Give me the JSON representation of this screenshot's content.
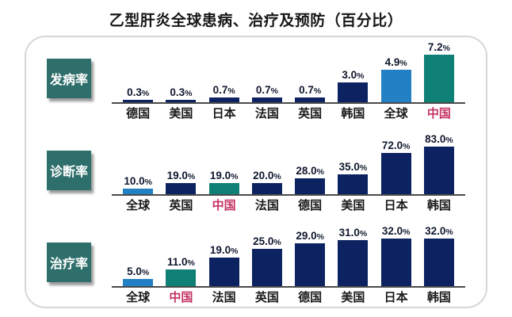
{
  "title": "乙型肝炎全球患病、治疗及预防（百分比）",
  "colors": {
    "bar_navy": "#0d2361",
    "bar_light_blue": "#2380c4",
    "bar_teal": "#0f8076",
    "row_label_box": "#2e6f6b",
    "china_label_red": "#c43364",
    "category_label_black": "#1a1a1a",
    "axis_line": "#4a4a4a",
    "card_border": "#d6d6d6"
  },
  "chart_data": [
    {
      "type": "bar",
      "row_label": "发病率",
      "unit": "%",
      "categories": [
        "德国",
        "美国",
        "日本",
        "法国",
        "英国",
        "韩国",
        "全球",
        "中国"
      ],
      "values": [
        0.3,
        0.3,
        0.7,
        0.7,
        0.7,
        3.0,
        4.9,
        7.2
      ],
      "labels": [
        "0.3",
        "0.3",
        "0.7",
        "0.7",
        "0.7",
        "3.0",
        "4.9",
        "7.2"
      ],
      "bar_colors": [
        "#0d2361",
        "#0d2361",
        "#0d2361",
        "#0d2361",
        "#0d2361",
        "#0d2361",
        "#2380c4",
        "#0f8076"
      ],
      "category_colors": [
        "#1a1a1a",
        "#1a1a1a",
        "#1a1a1a",
        "#1a1a1a",
        "#1a1a1a",
        "#1a1a1a",
        "#1a1a1a",
        "#c43364"
      ],
      "ylim": [
        0,
        7.2
      ],
      "grid": false,
      "legend": false
    },
    {
      "type": "bar",
      "row_label": "诊断率",
      "unit": "%",
      "categories": [
        "全球",
        "英国",
        "中国",
        "法国",
        "德国",
        "美国",
        "日本",
        "韩国"
      ],
      "values": [
        10.0,
        19.0,
        19.0,
        20.0,
        28.0,
        35.0,
        72.0,
        83.0
      ],
      "labels": [
        "10.0",
        "19.0",
        "19.0",
        "20.0",
        "28.0",
        "35.0",
        "72.0",
        "83.0"
      ],
      "bar_colors": [
        "#2380c4",
        "#0d2361",
        "#0f8076",
        "#0d2361",
        "#0d2361",
        "#0d2361",
        "#0d2361",
        "#0d2361"
      ],
      "category_colors": [
        "#1a1a1a",
        "#1a1a1a",
        "#c43364",
        "#1a1a1a",
        "#1a1a1a",
        "#1a1a1a",
        "#1a1a1a",
        "#1a1a1a"
      ],
      "ylim": [
        0,
        83
      ],
      "grid": false,
      "legend": false
    },
    {
      "type": "bar",
      "row_label": "治疗率",
      "unit": "%",
      "categories": [
        "全球",
        "中国",
        "法国",
        "英国",
        "德国",
        "美国",
        "日本",
        "韩国"
      ],
      "values": [
        5.0,
        11.0,
        19.0,
        25.0,
        29.0,
        31.0,
        32.0,
        32.0
      ],
      "labels": [
        "5.0",
        "11.0",
        "19.0",
        "25.0",
        "29.0",
        "31.0",
        "32.0",
        "32.0"
      ],
      "bar_colors": [
        "#2380c4",
        "#0f8076",
        "#0d2361",
        "#0d2361",
        "#0d2361",
        "#0d2361",
        "#0d2361",
        "#0d2361"
      ],
      "category_colors": [
        "#1a1a1a",
        "#c43364",
        "#1a1a1a",
        "#1a1a1a",
        "#1a1a1a",
        "#1a1a1a",
        "#1a1a1a",
        "#1a1a1a"
      ],
      "ylim": [
        0,
        32
      ],
      "grid": false,
      "legend": false
    }
  ]
}
